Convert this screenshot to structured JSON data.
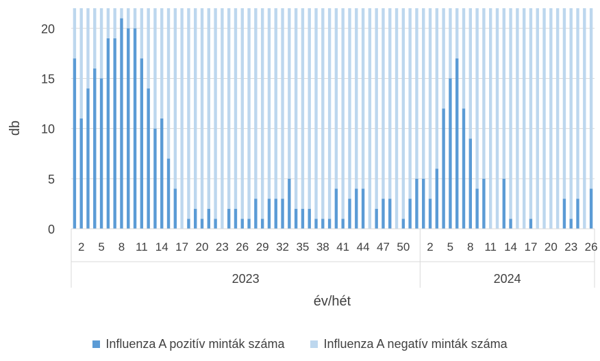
{
  "chart_data": {
    "type": "bar",
    "stacked": true,
    "ylabel": "db",
    "xlabel": "év/hét",
    "ylim": [
      0,
      22
    ],
    "yticks": [
      0,
      5,
      10,
      15,
      20
    ],
    "grid": true,
    "legend_position": "bottom",
    "years": [
      {
        "label": "2023",
        "weeks": 52
      },
      {
        "label": "2024",
        "weeks": 26
      }
    ],
    "tick_labels": [
      {
        "year": "2023",
        "week": 2,
        "label": "2"
      },
      {
        "year": "2023",
        "week": 5,
        "label": "5"
      },
      {
        "year": "2023",
        "week": 8,
        "label": "8"
      },
      {
        "year": "2023",
        "week": 11,
        "label": "11"
      },
      {
        "year": "2023",
        "week": 14,
        "label": "14"
      },
      {
        "year": "2023",
        "week": 17,
        "label": "17"
      },
      {
        "year": "2023",
        "week": 20,
        "label": "20"
      },
      {
        "year": "2023",
        "week": 23,
        "label": "23"
      },
      {
        "year": "2023",
        "week": 26,
        "label": "26"
      },
      {
        "year": "2023",
        "week": 29,
        "label": "29"
      },
      {
        "year": "2023",
        "week": 32,
        "label": "32"
      },
      {
        "year": "2023",
        "week": 35,
        "label": "35"
      },
      {
        "year": "2023",
        "week": 38,
        "label": "38"
      },
      {
        "year": "2023",
        "week": 41,
        "label": "41"
      },
      {
        "year": "2023",
        "week": 44,
        "label": "44"
      },
      {
        "year": "2023",
        "week": 47,
        "label": "47"
      },
      {
        "year": "2023",
        "week": 50,
        "label": "50"
      },
      {
        "year": "2024",
        "week": 2,
        "label": "2"
      },
      {
        "year": "2024",
        "week": 5,
        "label": "5"
      },
      {
        "year": "2024",
        "week": 8,
        "label": "8"
      },
      {
        "year": "2024",
        "week": 11,
        "label": "11"
      },
      {
        "year": "2024",
        "week": 14,
        "label": "14"
      },
      {
        "year": "2024",
        "week": 17,
        "label": "17"
      },
      {
        "year": "2024",
        "week": 20,
        "label": "20"
      },
      {
        "year": "2024",
        "week": 23,
        "label": "23"
      },
      {
        "year": "2024",
        "week": 26,
        "label": "26"
      }
    ],
    "series": [
      {
        "name": "Influenza A pozitív minták száma",
        "color": "#5b9bd5",
        "values": [
          17,
          11,
          14,
          16,
          15,
          19,
          19,
          21,
          20,
          20,
          17,
          14,
          10,
          11,
          7,
          4,
          0,
          1,
          2,
          1,
          2,
          1,
          0,
          2,
          2,
          1,
          1,
          3,
          1,
          3,
          3,
          3,
          5,
          2,
          2,
          2,
          1,
          1,
          1,
          4,
          1,
          3,
          4,
          4,
          0,
          2,
          3,
          3,
          0,
          1,
          3,
          5,
          5,
          3,
          6,
          12,
          15,
          17,
          12,
          9,
          4,
          5,
          0,
          0,
          5,
          1,
          0,
          0,
          1,
          0,
          0,
          0,
          0,
          3,
          1,
          3,
          0,
          4
        ]
      },
      {
        "name": "Influenza A negatív minták száma",
        "color": "#bdd7ee",
        "values": [
          5,
          11,
          8,
          6,
          7,
          3,
          3,
          1,
          2,
          2,
          5,
          8,
          12,
          11,
          15,
          18,
          22,
          21,
          20,
          21,
          20,
          21,
          22,
          20,
          20,
          21,
          21,
          19,
          21,
          19,
          19,
          19,
          17,
          20,
          20,
          20,
          21,
          21,
          21,
          18,
          21,
          19,
          18,
          18,
          22,
          20,
          19,
          19,
          22,
          21,
          19,
          17,
          17,
          19,
          16,
          10,
          7,
          5,
          10,
          13,
          18,
          17,
          22,
          22,
          17,
          21,
          22,
          22,
          21,
          22,
          22,
          22,
          22,
          19,
          21,
          19,
          22,
          18
        ]
      }
    ]
  }
}
